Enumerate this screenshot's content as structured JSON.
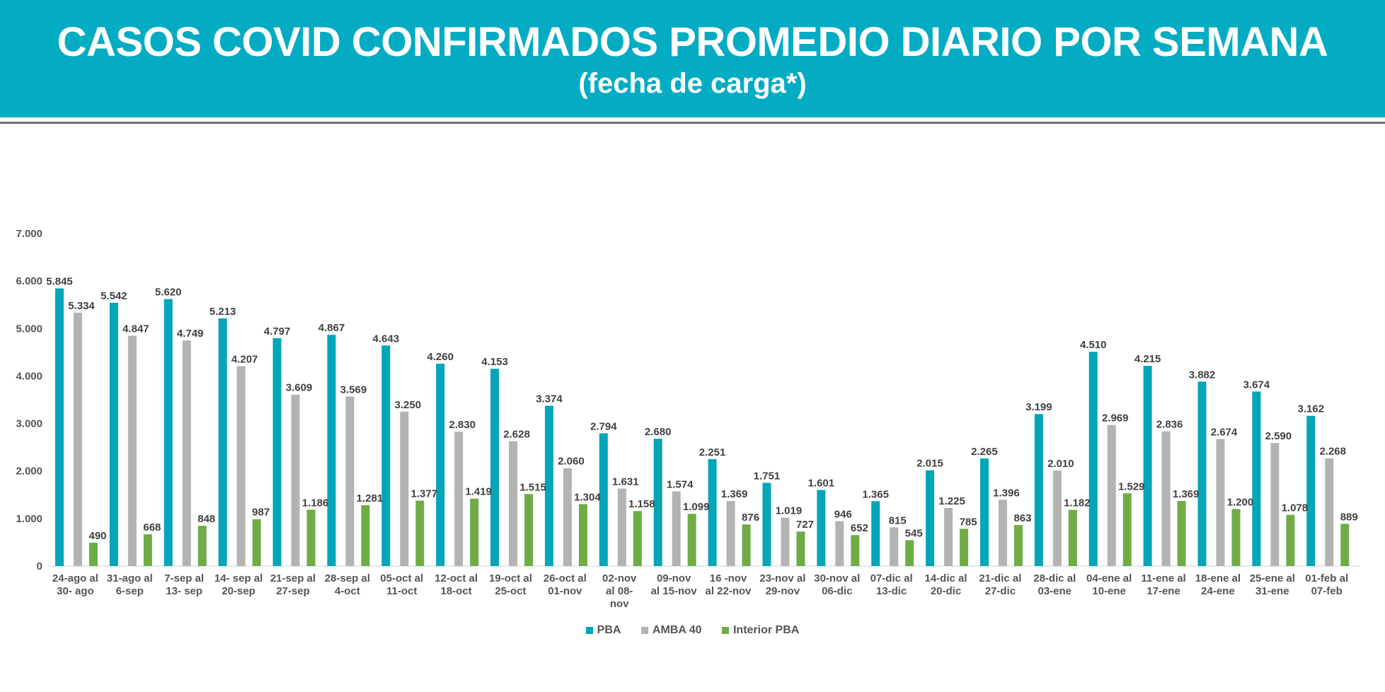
{
  "header": {
    "title": "CASOS COVID CONFIRMADOS PROMEDIO DIARIO POR SEMANA",
    "subtitle": "(fecha de carga*)"
  },
  "colors": {
    "banner": "#03acc3",
    "pba": "#03a5b8",
    "amba": "#b3b3b3",
    "interior": "#6fac46"
  },
  "chart_data": {
    "type": "bar",
    "title": "CASOS COVID CONFIRMADOS PROMEDIO DIARIO POR SEMANA",
    "subtitle": "(fecha de carga*)",
    "xlabel": "",
    "ylabel": "",
    "ylim": [
      0,
      7000
    ],
    "yticks": [
      "0",
      "1.000",
      "2.000",
      "3.000",
      "4.000",
      "5.000",
      "6.000",
      "7.000"
    ],
    "grid": false,
    "legend_position": "bottom",
    "categories": [
      [
        "24-ago al",
        "30- ago"
      ],
      [
        "31-ago al",
        "6-sep"
      ],
      [
        "7-sep al",
        "13- sep"
      ],
      [
        "14- sep al",
        "20-sep"
      ],
      [
        "21-sep al",
        "27-sep"
      ],
      [
        "28-sep al",
        "4-oct"
      ],
      [
        "05-oct al",
        "11-oct"
      ],
      [
        "12-oct al",
        "18-oct"
      ],
      [
        "19-oct al",
        "25-oct"
      ],
      [
        "26-oct al",
        "01-nov"
      ],
      [
        "02-nov",
        "al 08-",
        "nov"
      ],
      [
        "09-nov",
        "al 15-nov"
      ],
      [
        "16 -nov",
        "al 22-nov"
      ],
      [
        "23-nov al",
        "29-nov"
      ],
      [
        "30-nov al",
        "06-dic"
      ],
      [
        "07-dic al",
        "13-dic"
      ],
      [
        "14-dic al",
        "20-dic"
      ],
      [
        "21-dic al",
        "27-dic"
      ],
      [
        "28-dic al",
        "03-ene"
      ],
      [
        "04-ene al",
        "10-ene"
      ],
      [
        "11-ene al",
        "17-ene"
      ],
      [
        "18-ene al",
        "24-ene"
      ],
      [
        "25-ene al",
        "31-ene"
      ],
      [
        "01-feb al",
        "07-feb"
      ]
    ],
    "series": [
      {
        "name": "PBA",
        "color": "#03a5b8",
        "values": [
          5845,
          5542,
          5620,
          5213,
          4797,
          4867,
          4643,
          4260,
          4153,
          3374,
          2794,
          2680,
          2251,
          1751,
          1601,
          1365,
          2015,
          2265,
          3199,
          4510,
          4215,
          3882,
          3674,
          3162
        ],
        "labels": [
          "5.845",
          "5.542",
          "5.620",
          "5.213",
          "4.797",
          "4.867",
          "4.643",
          "4.260",
          "4.153",
          "3.374",
          "2.794",
          "2.680",
          "2.251",
          "1.751",
          "1.601",
          "1.365",
          "2.015",
          "2.265",
          "3.199",
          "4.510",
          "4.215",
          "3.882",
          "3.674",
          "3.162"
        ]
      },
      {
        "name": "AMBA 40",
        "color": "#b3b3b3",
        "values": [
          5334,
          4847,
          4749,
          4207,
          3609,
          3569,
          3250,
          2830,
          2628,
          2060,
          1631,
          1574,
          1369,
          1019,
          946,
          815,
          1225,
          1396,
          2010,
          2969,
          2836,
          2674,
          2590,
          2268
        ],
        "labels": [
          "5.334",
          "4.847",
          "4.749",
          "4.207",
          "3.609",
          "3.569",
          "3.250",
          "2.830",
          "2.628",
          "2.060",
          "1.631",
          "1.574",
          "1.369",
          "1.019",
          "946",
          "815",
          "1.225",
          "1.396",
          "2.010",
          "2.969",
          "2.836",
          "2.674",
          "2.590",
          "2.268"
        ]
      },
      {
        "name": "Interior PBA",
        "color": "#6fac46",
        "values": [
          490,
          668,
          848,
          987,
          1186,
          1281,
          1377,
          1419,
          1515,
          1304,
          1158,
          1099,
          876,
          727,
          652,
          545,
          785,
          863,
          1182,
          1529,
          1369,
          1200,
          1078,
          889
        ],
        "labels": [
          "490",
          "668",
          "848",
          "987",
          "1.186",
          "1.281",
          "1.377",
          "1.419",
          "1.515",
          "1.304",
          "1.158",
          "1.099",
          "876",
          "727",
          "652",
          "545",
          "785",
          "863",
          "1.182",
          "1.529",
          "1.369",
          "1.200",
          "1.078",
          "889"
        ]
      }
    ]
  }
}
